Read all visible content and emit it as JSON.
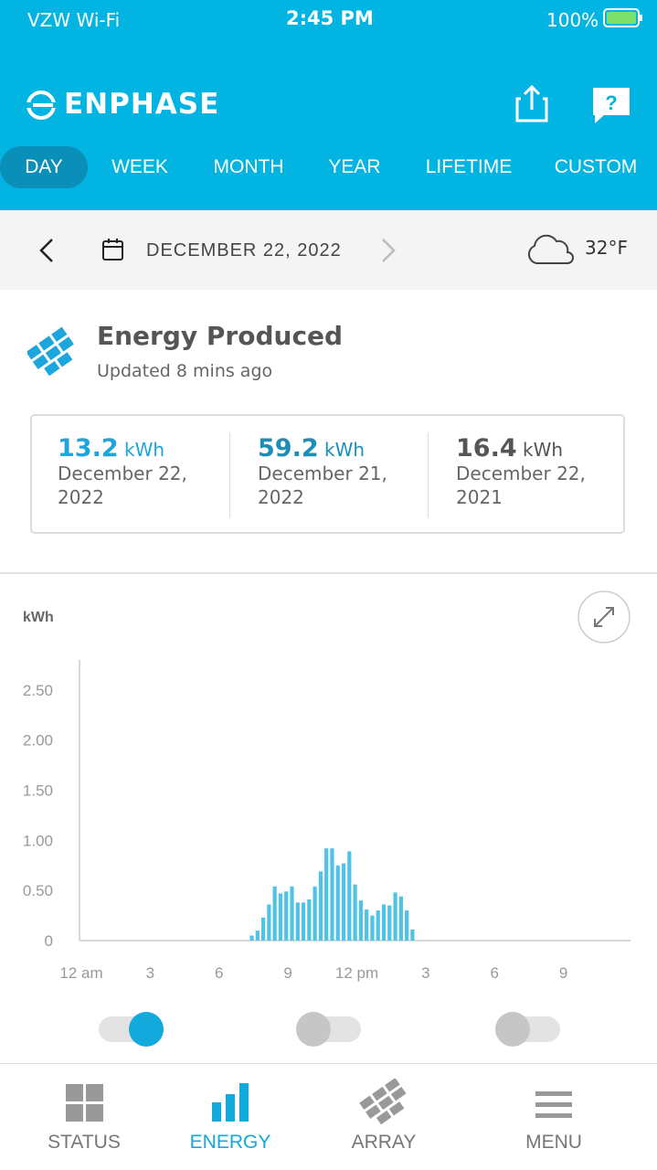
{
  "status_bar": {
    "carrier": "VZW Wi-Fi",
    "time": "2:45 PM",
    "battery": "100%"
  },
  "header": {
    "brand": "ENPHASE"
  },
  "tabs": [
    "DAY",
    "WEEK",
    "MONTH",
    "YEAR",
    "LIFETIME",
    "CUSTOM"
  ],
  "date_bar": {
    "date": "DECEMBER 22, 2022",
    "temperature": "32°F"
  },
  "summary": {
    "title": "Energy Produced",
    "subtitle": "Updated 8 mins ago",
    "stats": [
      {
        "value": 13.2,
        "unit": "kWh",
        "date": "December 22, 2022"
      },
      {
        "value": 59.2,
        "unit": "kWh",
        "date": "December 21, 2022"
      },
      {
        "value": 16.4,
        "unit": "kWh",
        "date": "December 22, 2021"
      }
    ]
  },
  "chart_data": {
    "type": "bar",
    "y_label": "kWh",
    "color": "#4ec3e6",
    "x": [
      7.5,
      7.75,
      8,
      8.25,
      8.5,
      8.75,
      9,
      9.25,
      9.5,
      9.75,
      10,
      10.25,
      10.5,
      10.75,
      11,
      11.25,
      11.5,
      11.75,
      12,
      12.25,
      12.5,
      12.75,
      13,
      13.25,
      13.5,
      13.75,
      14,
      14.25,
      14.5
    ],
    "values": [
      0.05,
      0.1,
      0.23,
      0.36,
      0.54,
      0.47,
      0.49,
      0.54,
      0.38,
      0.38,
      0.41,
      0.54,
      0.69,
      0.92,
      0.92,
      0.75,
      0.77,
      0.89,
      0.56,
      0.4,
      0.31,
      0.25,
      0.3,
      0.36,
      0.35,
      0.48,
      0.44,
      0.3,
      0.11
    ],
    "xlim": [
      0,
      24
    ],
    "xticks": [
      {
        "value": 0,
        "label": "12 am"
      },
      3,
      6,
      9,
      {
        "value": 12,
        "label": "12 pm"
      },
      {
        "value": 15,
        "label": "3"
      },
      {
        "value": 18,
        "label": "6"
      },
      {
        "value": 21,
        "label": "9"
      }
    ],
    "ylim": [
      0,
      2.8
    ],
    "yticks": [
      0,
      {
        "value": 0.5,
        "label": "0.50"
      },
      {
        "value": 1,
        "label": "1.00"
      },
      {
        "value": 1.5,
        "label": "1.50"
      },
      {
        "value": 2,
        "label": "2.00"
      },
      {
        "value": 2.5,
        "label": "2.50"
      }
    ]
  },
  "bottom_nav": [
    "STATUS",
    "ENERGY",
    "ARRAY",
    "MENU"
  ]
}
